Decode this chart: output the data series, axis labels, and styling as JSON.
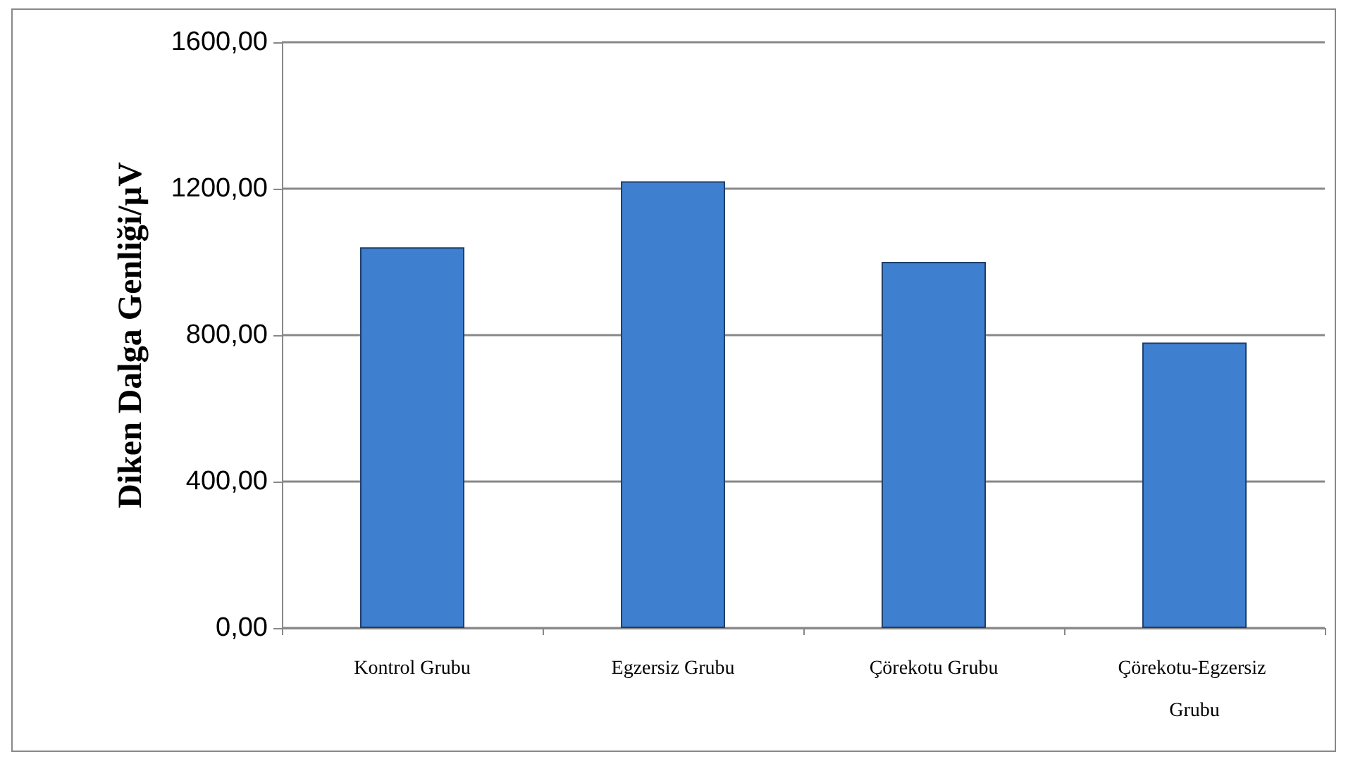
{
  "chart_data": {
    "type": "bar",
    "ylabel": "Diken Dalga Genliği/µV",
    "categories": [
      "Kontrol Grubu",
      "Egzersiz Grubu",
      "Çörekotu Grubu",
      "Çörekotu-Egzersiz Grubu"
    ],
    "values": [
      1040,
      1220,
      1000,
      780
    ],
    "color": "#3f7fd0",
    "ylim": [
      0,
      1600
    ],
    "yticks": [
      {
        "value": 0,
        "label": "0,00"
      },
      {
        "value": 400,
        "label": "400,00"
      },
      {
        "value": 800,
        "label": "800,00"
      },
      {
        "value": 1200,
        "label": "1200,00"
      },
      {
        "value": 1600,
        "label": "1600,00"
      }
    ],
    "grid": "y"
  }
}
